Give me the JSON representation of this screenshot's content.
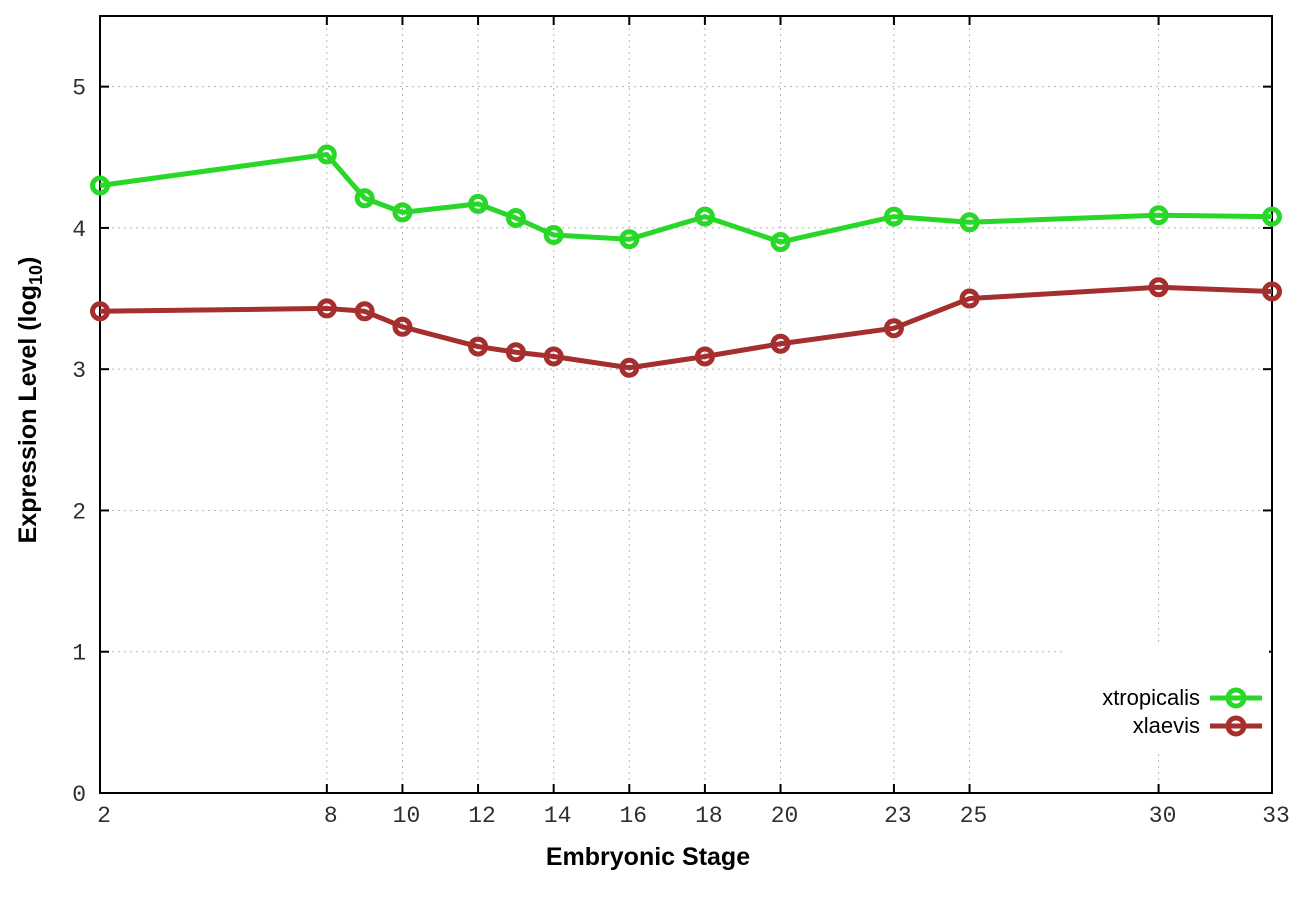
{
  "chart_data": {
    "type": "line",
    "title": "",
    "xlabel": "Embryonic Stage",
    "ylabel": "Expression Level (log10)",
    "ylabel_parts": {
      "prefix": "Expression Level (log",
      "subscript": "10",
      "suffix": ")"
    },
    "x": [
      2,
      8,
      9,
      10,
      12,
      13,
      14,
      16,
      18,
      20,
      23,
      25,
      30,
      33
    ],
    "series": [
      {
        "name": "xtropicalis",
        "color": "#28d728",
        "values": [
          4.3,
          4.52,
          4.21,
          4.11,
          4.17,
          4.07,
          3.95,
          3.92,
          4.08,
          3.9,
          4.08,
          4.04,
          4.09,
          4.08
        ]
      },
      {
        "name": "xlaevis",
        "color": "#a52e2e",
        "values": [
          3.41,
          3.43,
          3.41,
          3.3,
          3.16,
          3.12,
          3.09,
          3.01,
          3.09,
          3.18,
          3.29,
          3.5,
          3.58,
          3.55
        ]
      }
    ],
    "xticks": [
      2,
      8,
      10,
      12,
      14,
      16,
      18,
      20,
      23,
      25,
      30,
      33
    ],
    "yticks": [
      0,
      1,
      2,
      3,
      4,
      5
    ],
    "xlim": [
      2,
      33
    ],
    "ylim": [
      0,
      5.5
    ],
    "grid": true,
    "legend_position": "bottom-right"
  },
  "style": {
    "border_color": "#000000",
    "grid_color": "#b5b5b5",
    "tick_label_color": "#2f2f2f",
    "background": "#ffffff"
  }
}
